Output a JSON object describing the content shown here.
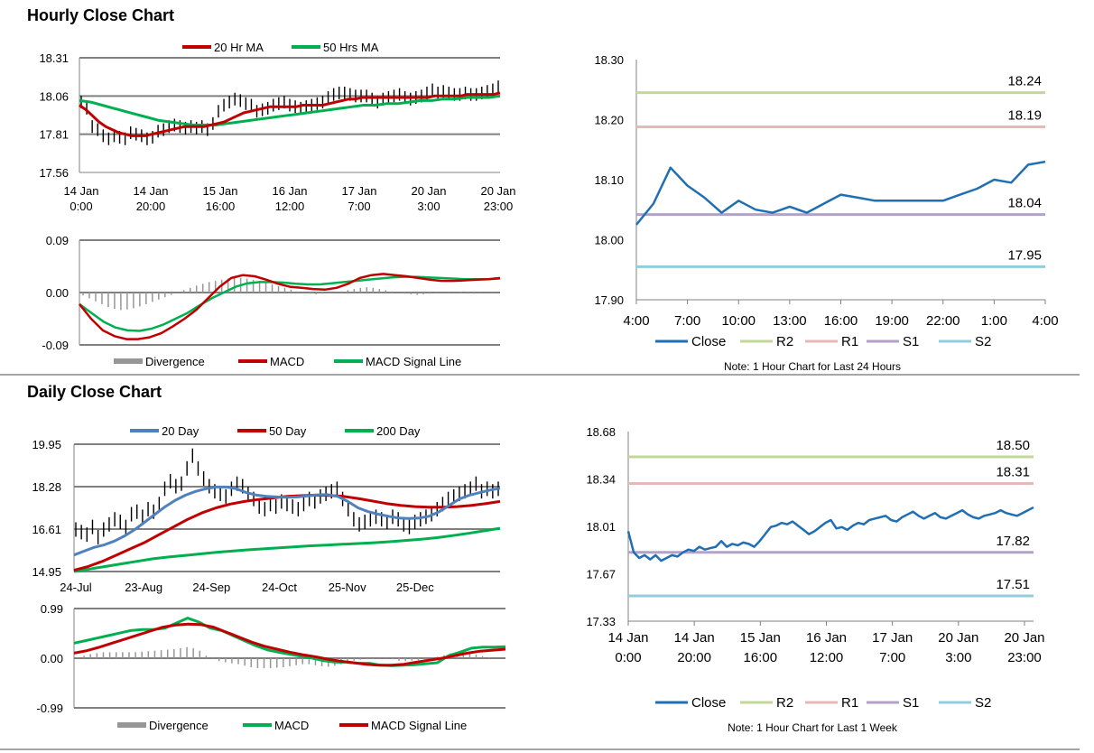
{
  "sections": {
    "hourly_title": "Hourly Close Chart",
    "daily_title": "Daily Close Chart"
  },
  "colors": {
    "red": "#c00000",
    "green": "#00b050",
    "blue": "#1f6fb2",
    "steel": "#4f81bd",
    "r2": "#c3d69b",
    "r1": "#e6b9b8",
    "s1": "#b3a2c7",
    "s2": "#93cddd",
    "grid": "#808080",
    "bar": "#000000",
    "hist": "#969696"
  },
  "chart_data": [
    {
      "id": "hourly_price",
      "type": "line",
      "title": "",
      "legend": [
        "20 Hr MA",
        "50 Hrs MA"
      ],
      "y_ticks": [
        "18.31",
        "18.06",
        "17.81",
        "17.56"
      ],
      "ylim": [
        17.56,
        18.31
      ],
      "x_tick_lines": [
        [
          "14 Jan",
          "0:00"
        ],
        [
          "14 Jan",
          "20:00"
        ],
        [
          "15 Jan",
          "16:00"
        ],
        [
          "16 Jan",
          "12:00"
        ],
        [
          "17 Jan",
          "7:00"
        ],
        [
          "20 Jan",
          "3:00"
        ],
        [
          "20 Jan",
          "23:00"
        ]
      ],
      "close": [
        18.02,
        17.98,
        17.86,
        17.84,
        17.8,
        17.78,
        17.8,
        17.79,
        17.78,
        17.82,
        17.81,
        17.8,
        17.78,
        17.79,
        17.83,
        17.84,
        17.86,
        17.87,
        17.86,
        17.85,
        17.86,
        17.85,
        17.86,
        17.84,
        17.88,
        17.96,
        18.0,
        18.02,
        18.04,
        18.03,
        18.01,
        18.0,
        17.96,
        17.97,
        17.98,
        18.0,
        18.01,
        18.02,
        18.0,
        17.99,
        17.98,
        17.99,
        18.0,
        18.01,
        18.02,
        18.05,
        18.07,
        18.08,
        18.08,
        18.07,
        18.06,
        18.06,
        18.06,
        18.04,
        18.02,
        18.04,
        18.05,
        18.06,
        18.07,
        18.05,
        18.04,
        18.05,
        18.06,
        18.08,
        18.1,
        18.08,
        18.09,
        18.08,
        18.07,
        18.07,
        18.08,
        18.07,
        18.07,
        18.08,
        18.09,
        18.1,
        18.12
      ],
      "ma20": [
        18.0,
        17.97,
        17.93,
        17.89,
        17.86,
        17.84,
        17.82,
        17.81,
        17.8,
        17.8,
        17.8,
        17.81,
        17.82,
        17.83,
        17.84,
        17.85,
        17.86,
        17.86,
        17.86,
        17.86,
        17.87,
        17.88,
        17.89,
        17.91,
        17.93,
        17.95,
        17.96,
        17.97,
        17.98,
        17.99,
        17.99,
        17.99,
        17.99,
        17.99,
        18.0,
        18.0,
        18.0,
        18.0,
        18.01,
        18.02,
        18.03,
        18.04,
        18.04,
        18.05,
        18.05,
        18.05,
        18.05,
        18.05,
        18.05,
        18.05,
        18.05,
        18.05,
        18.05,
        18.05,
        18.06,
        18.06,
        18.06,
        18.06,
        18.06,
        18.07,
        18.07,
        18.07,
        18.07,
        18.07,
        18.08
      ],
      "ma50": [
        18.03,
        18.02,
        18.0,
        17.98,
        17.96,
        17.94,
        17.92,
        17.9,
        17.89,
        17.88,
        17.87,
        17.87,
        17.87,
        17.88,
        17.89,
        17.9,
        17.91,
        17.92,
        17.93,
        17.94,
        17.95,
        17.96,
        17.97,
        17.98,
        17.99,
        18.0,
        18.0,
        18.01,
        18.01,
        18.02,
        18.03,
        18.03,
        18.04,
        18.04,
        18.05,
        18.05,
        18.05,
        18.06
      ]
    },
    {
      "id": "hourly_macd",
      "type": "line",
      "y_ticks": [
        "0.09",
        "0.00",
        "-0.09"
      ],
      "ylim": [
        -0.09,
        0.09
      ],
      "legend": [
        "Divergence",
        "MACD",
        "MACD Signal Line"
      ],
      "divergence": [
        -0.005,
        -0.01,
        -0.015,
        -0.02,
        -0.025,
        -0.028,
        -0.03,
        -0.029,
        -0.027,
        -0.024,
        -0.02,
        -0.016,
        -0.012,
        -0.008,
        -0.004,
        0.0,
        0.004,
        0.008,
        0.012,
        0.015,
        0.018,
        0.02,
        0.022,
        0.024,
        0.025,
        0.025,
        0.024,
        0.022,
        0.02,
        0.017,
        0.014,
        0.011,
        0.008,
        0.005,
        0.002,
        0.0,
        -0.002,
        -0.003,
        -0.002,
        -0.001,
        0.0,
        0.002,
        0.004,
        0.006,
        0.008,
        0.009,
        0.008,
        0.006,
        0.004,
        0.002,
        0.0,
        -0.002,
        -0.003,
        -0.004,
        -0.003,
        -0.002,
        -0.001,
        0.0,
        0.001,
        0.0,
        -0.001,
        -0.002,
        -0.002,
        -0.001,
        0.0,
        0.001
      ],
      "macd": [
        -0.02,
        -0.045,
        -0.065,
        -0.075,
        -0.08,
        -0.08,
        -0.077,
        -0.07,
        -0.058,
        -0.045,
        -0.03,
        -0.01,
        0.01,
        0.025,
        0.03,
        0.028,
        0.022,
        0.015,
        0.01,
        0.008,
        0.006,
        0.005,
        0.008,
        0.015,
        0.025,
        0.03,
        0.032,
        0.03,
        0.028,
        0.025,
        0.022,
        0.02,
        0.02,
        0.021,
        0.022,
        0.023,
        0.025
      ],
      "signal": [
        -0.02,
        -0.035,
        -0.05,
        -0.06,
        -0.065,
        -0.066,
        -0.062,
        -0.055,
        -0.045,
        -0.035,
        -0.022,
        -0.01,
        0.0,
        0.01,
        0.016,
        0.018,
        0.018,
        0.017,
        0.015,
        0.014,
        0.014,
        0.016,
        0.018,
        0.02,
        0.022,
        0.024,
        0.026,
        0.027,
        0.027,
        0.026,
        0.025,
        0.024,
        0.023,
        0.023,
        0.023,
        0.024
      ]
    },
    {
      "id": "hourly_sr",
      "type": "line",
      "y_ticks": [
        "18.30",
        "18.20",
        "18.10",
        "18.00",
        "17.90"
      ],
      "ylim": [
        17.9,
        18.3
      ],
      "x_ticks": [
        "4:00",
        "7:00",
        "10:00",
        "13:00",
        "16:00",
        "19:00",
        "22:00",
        "1:00",
        "4:00"
      ],
      "close": [
        18.025,
        18.06,
        18.12,
        18.09,
        18.07,
        18.045,
        18.065,
        18.05,
        18.045,
        18.055,
        18.045,
        18.06,
        18.075,
        18.07,
        18.065,
        18.065,
        18.065,
        18.065,
        18.065,
        18.075,
        18.085,
        18.1,
        18.095,
        18.125,
        18.13
      ],
      "levels": {
        "R2": 18.245,
        "R1": 18.188,
        "S1": 18.042,
        "S2": 17.955
      },
      "level_labels": {
        "R2": "18.24",
        "R1": "18.19",
        "S1": "18.04",
        "S2": "17.95"
      },
      "legend": [
        "Close",
        "R2",
        "R1",
        "S1",
        "S2"
      ],
      "note": "Note: 1 Hour Chart for Last 24 Hours"
    },
    {
      "id": "daily_price",
      "type": "line",
      "legend": [
        "20 Day",
        "50 Day",
        "200 Day"
      ],
      "y_ticks": [
        "19.95",
        "18.28",
        "16.61",
        "14.95"
      ],
      "ylim": [
        14.95,
        19.95
      ],
      "x_ticks": [
        "24-Jul",
        "23-Aug",
        "24-Sep",
        "24-Oct",
        "25-Nov",
        "25-Dec"
      ],
      "close": [
        16.6,
        16.5,
        16.4,
        16.7,
        16.3,
        16.6,
        16.8,
        17.0,
        16.9,
        16.7,
        17.2,
        17.3,
        17.1,
        17.4,
        17.3,
        17.6,
        18.2,
        18.5,
        18.3,
        18.4,
        19.0,
        19.5,
        19.0,
        18.6,
        18.3,
        18.1,
        18.0,
        17.9,
        18.2,
        18.4,
        18.3,
        18.0,
        17.8,
        17.5,
        17.4,
        17.6,
        17.5,
        17.7,
        17.6,
        17.5,
        17.4,
        17.6,
        17.8,
        17.7,
        17.9,
        18.0,
        18.1,
        18.2,
        17.8,
        17.4,
        17.0,
        16.8,
        16.9,
        17.0,
        17.1,
        17.0,
        16.9,
        17.1,
        17.0,
        16.8,
        16.7,
        16.9,
        17.0,
        17.1,
        17.2,
        17.4,
        17.6,
        17.8,
        17.9,
        18.0,
        18.1,
        18.2,
        18.4,
        18.1,
        18.2,
        18.1,
        18.2
      ],
      "ma20": [
        15.6,
        15.75,
        15.9,
        16.0,
        16.15,
        16.35,
        16.6,
        16.9,
        17.2,
        17.5,
        17.75,
        17.95,
        18.1,
        18.2,
        18.27,
        18.27,
        18.2,
        18.05,
        17.95,
        17.9,
        17.88,
        17.87,
        17.88,
        17.92,
        17.96,
        17.97,
        17.9,
        17.7,
        17.45,
        17.3,
        17.2,
        17.12,
        17.05,
        17.03,
        17.05,
        17.12,
        17.3,
        17.55,
        17.8,
        17.95,
        18.05,
        18.15,
        18.22
      ],
      "ma50": [
        15.0,
        15.15,
        15.35,
        15.6,
        15.85,
        16.1,
        16.4,
        16.7,
        17.0,
        17.25,
        17.45,
        17.6,
        17.7,
        17.78,
        17.84,
        17.9,
        17.93,
        17.95,
        17.94,
        17.9,
        17.82,
        17.72,
        17.62,
        17.55,
        17.5,
        17.48,
        17.48,
        17.5,
        17.55,
        17.62,
        17.7
      ],
      "ma200": [
        14.95,
        15.05,
        15.15,
        15.25,
        15.35,
        15.45,
        15.52,
        15.58,
        15.64,
        15.7,
        15.75,
        15.8,
        15.84,
        15.88,
        15.92,
        15.96,
        15.99,
        16.02,
        16.05,
        16.08,
        16.12,
        16.17,
        16.22,
        16.28,
        16.36,
        16.45,
        16.55,
        16.65
      ]
    },
    {
      "id": "daily_macd",
      "type": "line",
      "y_ticks": [
        "0.99",
        "0.00",
        "-0.99"
      ],
      "ylim": [
        -0.99,
        0.99
      ],
      "legend": [
        "Divergence",
        "MACD",
        "MACD Signal Line"
      ],
      "divergence": [
        0.02,
        0.05,
        0.08,
        0.1,
        0.12,
        0.12,
        0.12,
        0.12,
        0.12,
        0.12,
        0.13,
        0.14,
        0.15,
        0.16,
        0.17,
        0.18,
        0.2,
        0.22,
        0.2,
        0.15,
        0.05,
        -0.02,
        -0.06,
        -0.08,
        -0.1,
        -0.12,
        -0.15,
        -0.18,
        -0.2,
        -0.2,
        -0.2,
        -0.19,
        -0.18,
        -0.16,
        -0.14,
        -0.12,
        -0.12,
        -0.14,
        -0.16,
        -0.17,
        -0.15,
        -0.12,
        -0.08,
        -0.05,
        -0.03,
        -0.02,
        -0.01,
        0.0,
        -0.01,
        -0.02,
        -0.05,
        -0.06,
        -0.05,
        -0.04,
        -0.03,
        0.0,
        0.03,
        0.06,
        0.1,
        0.12,
        0.12,
        0.1,
        0.07,
        0.04,
        0.02,
        0.0,
        0.0
      ],
      "macd": [
        0.3,
        0.35,
        0.4,
        0.45,
        0.5,
        0.55,
        0.57,
        0.57,
        0.6,
        0.7,
        0.8,
        0.72,
        0.6,
        0.55,
        0.45,
        0.35,
        0.25,
        0.17,
        0.12,
        0.08,
        0.04,
        0.0,
        -0.05,
        -0.08,
        -0.08,
        -0.1,
        -0.1,
        -0.14,
        -0.15,
        -0.14,
        -0.13,
        -0.11,
        -0.09,
        0.05,
        0.12,
        0.2,
        0.22,
        0.22,
        0.23
      ],
      "signal": [
        0.1,
        0.15,
        0.22,
        0.3,
        0.38,
        0.46,
        0.54,
        0.62,
        0.66,
        0.68,
        0.67,
        0.62,
        0.52,
        0.42,
        0.32,
        0.24,
        0.18,
        0.12,
        0.07,
        0.03,
        -0.02,
        -0.06,
        -0.09,
        -0.12,
        -0.14,
        -0.14,
        -0.12,
        -0.08,
        -0.04,
        0.0,
        0.05,
        0.1,
        0.14,
        0.16,
        0.18
      ]
    },
    {
      "id": "daily_sr",
      "type": "line",
      "y_ticks": [
        "18.68",
        "18.34",
        "18.01",
        "17.67",
        "17.33"
      ],
      "ylim": [
        17.33,
        18.68
      ],
      "x_tick_lines": [
        [
          "14 Jan",
          "0:00"
        ],
        [
          "14 Jan",
          "20:00"
        ],
        [
          "15 Jan",
          "16:00"
        ],
        [
          "16 Jan",
          "12:00"
        ],
        [
          "17 Jan",
          "7:00"
        ],
        [
          "20 Jan",
          "3:00"
        ],
        [
          "20 Jan",
          "23:00"
        ]
      ],
      "close": [
        17.97,
        17.82,
        17.78,
        17.8,
        17.77,
        17.8,
        17.76,
        17.78,
        17.8,
        17.79,
        17.82,
        17.84,
        17.83,
        17.86,
        17.84,
        17.85,
        17.86,
        17.9,
        17.86,
        17.88,
        17.87,
        17.89,
        17.88,
        17.86,
        17.9,
        17.95,
        18.0,
        18.01,
        18.03,
        18.02,
        18.04,
        18.01,
        17.98,
        17.95,
        17.97,
        18.0,
        18.03,
        18.05,
        17.99,
        18.0,
        17.98,
        18.01,
        18.03,
        18.02,
        18.05,
        18.06,
        18.07,
        18.08,
        18.05,
        18.04,
        18.07,
        18.09,
        18.11,
        18.08,
        18.06,
        18.08,
        18.1,
        18.07,
        18.06,
        18.08,
        18.1,
        18.12,
        18.09,
        18.07,
        18.06,
        18.08,
        18.09,
        18.1,
        18.12,
        18.1,
        18.09,
        18.08,
        18.1,
        18.12,
        18.14
      ],
      "levels": {
        "R2": 18.5,
        "R1": 18.31,
        "S1": 17.82,
        "S2": 17.51
      },
      "level_labels": {
        "R2": "18.50",
        "R1": "18.31",
        "S1": "17.82",
        "S2": "17.51"
      },
      "legend": [
        "Close",
        "R2",
        "R1",
        "S1",
        "S2"
      ],
      "note": "Note: 1 Hour Chart for Last 1 Week"
    }
  ]
}
